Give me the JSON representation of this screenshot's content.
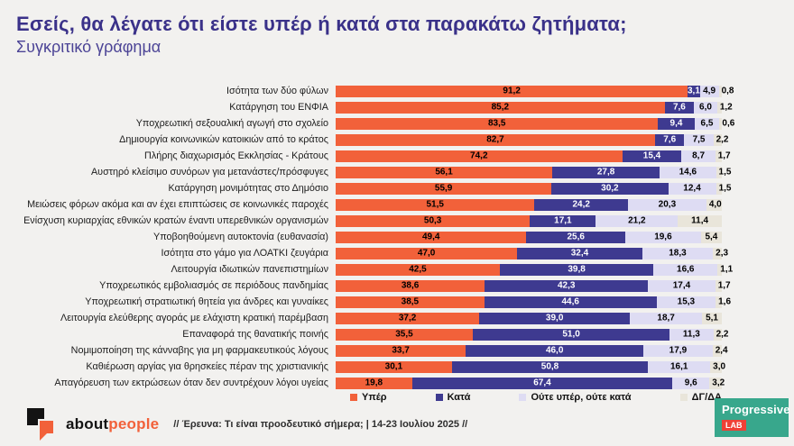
{
  "title": "Εσείς, θα λέγατε ότι είστε υπέρ ή κατά στα παρακάτω ζητήματα;",
  "subtitle": "Συγκριτικό γράφημα",
  "colors": {
    "title": "#3a3189",
    "yper": "#f2613a",
    "kata": "#3e3a90",
    "oute": "#dedcf3",
    "dgda": "#e9e5da",
    "background": "#f2f1ef",
    "lab_badge": "#38a78c",
    "lab_sub_badge": "#ef4136"
  },
  "chart_data": {
    "type": "bar",
    "stacked": true,
    "orientation": "horizontal",
    "unit": "percent",
    "xlim": [
      0,
      100
    ],
    "grid": false,
    "legend_position": "bottom",
    "value_decimal_separator": ",",
    "categories": [
      "Ισότητα των δύο φύλων",
      "Κατάργηση του ΕΝΦΙΑ",
      "Υποχρεωτική σεξουαλική αγωγή στο σχολείο",
      "Δημιουργία κοινωνικών κατοικιών από το κράτος",
      "Πλήρης διαχωρισμός Εκκλησίας - Κράτους",
      "Αυστηρό κλείσιμο συνόρων για μετανάστες/πρόσφυγες",
      "Κατάργηση μονιμότητας στο Δημόσιο",
      "Μειώσεις φόρων ακόμα και αν έχει επιπτώσεις σε κοινωνικές παροχές",
      "Ενίσχυση κυριαρχίας εθνικών κρατών έναντι υπερεθνικών οργανισμών",
      "Υποβοηθούμενη αυτοκτονία (ευθανασία)",
      "Ισότητα στο γάμο για ΛΟΑΤΚΙ ζευγάρια",
      "Λειτουργία ιδιωτικών πανεπιστημίων",
      "Υποχρεωτικός εμβολιασμός σε περιόδους πανδημίας",
      "Υποχρεωτική στρατιωτική θητεία για άνδρες και γυναίκες",
      "Λειτουργία ελεύθερης αγοράς με ελάχιστη κρατική παρέμβαση",
      "Επαναφορά της θανατικής ποινής",
      "Νομιμοποίηση της κάνναβης για μη φαρμακευτικούς λόγους",
      "Καθιέρωση αργίας για θρησκείες πέραν της χριστιανικής",
      "Απαγόρευση των εκτρώσεων όταν δεν συντρέχουν λόγοι υγείας"
    ],
    "series": [
      {
        "name": "Υπέρ",
        "color": "#f2613a",
        "values": [
          91.2,
          85.2,
          83.5,
          82.7,
          74.2,
          56.1,
          55.9,
          51.5,
          50.3,
          49.4,
          47.0,
          42.5,
          38.6,
          38.5,
          37.2,
          35.5,
          33.7,
          30.1,
          19.8
        ]
      },
      {
        "name": "Κατά",
        "color": "#3e3a90",
        "values": [
          3.1,
          7.6,
          9.4,
          7.6,
          15.4,
          27.8,
          30.2,
          24.2,
          17.1,
          25.6,
          32.4,
          39.8,
          42.3,
          44.6,
          39.0,
          51.0,
          46.0,
          50.8,
          67.4
        ]
      },
      {
        "name": "Ούτε υπέρ, ούτε κατά",
        "color": "#dedcf3",
        "values": [
          4.9,
          6.0,
          6.5,
          7.5,
          8.7,
          14.6,
          12.4,
          20.3,
          21.2,
          19.6,
          18.3,
          16.6,
          17.4,
          15.3,
          18.7,
          11.3,
          17.9,
          16.1,
          9.6
        ]
      },
      {
        "name": "ΔΓ/ΔΑ",
        "color": "#e9e5da",
        "values": [
          0.8,
          1.2,
          0.6,
          2.2,
          1.7,
          1.5,
          1.5,
          4.0,
          11.4,
          5.4,
          2.3,
          1.1,
          1.7,
          1.6,
          5.1,
          2.2,
          2.4,
          3.0,
          3.2
        ]
      }
    ]
  },
  "footer": {
    "brand_about": "about",
    "brand_people": "people",
    "survey_note": "// Έρευνα: Τι είναι προοδευτικό σήμερα; | 14-23 Ιουλίου 2025 //",
    "lab_name": "Progressive",
    "lab_sub": "LAB"
  }
}
